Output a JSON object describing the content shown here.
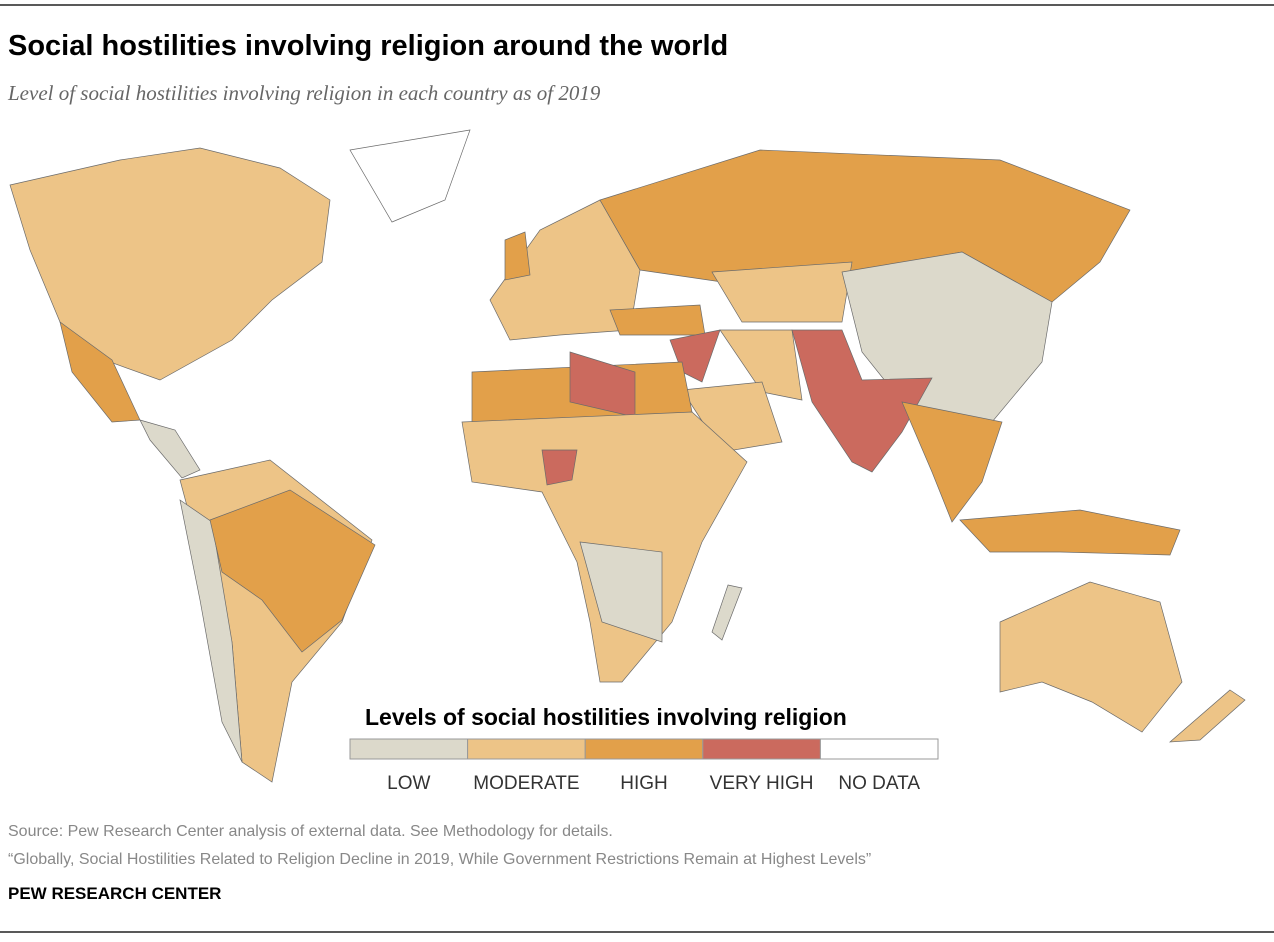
{
  "header": {
    "title": "Social hostilities involving religion around the world",
    "subtitle": "Level of social hostilities involving religion in each country as of 2019"
  },
  "legend": {
    "title": "Levels of social hostilities involving religion",
    "items": [
      {
        "label": "LOW",
        "color": "#dcd9cb"
      },
      {
        "label": "MODERATE",
        "color": "#edc487"
      },
      {
        "label": "HIGH",
        "color": "#e2a04a"
      },
      {
        "label": "VERY HIGH",
        "color": "#cb6a5e"
      },
      {
        "label": "NO DATA",
        "color": "#ffffff"
      }
    ]
  },
  "footer": {
    "source": "Source: Pew Research Center analysis of external data. See Methodology for details.",
    "report": "“Globally, Social Hostilities Related to Religion Decline in 2019, While Government Restrictions Remain at Highest Levels”",
    "brand": "PEW RESEARCH CENTER"
  }
}
